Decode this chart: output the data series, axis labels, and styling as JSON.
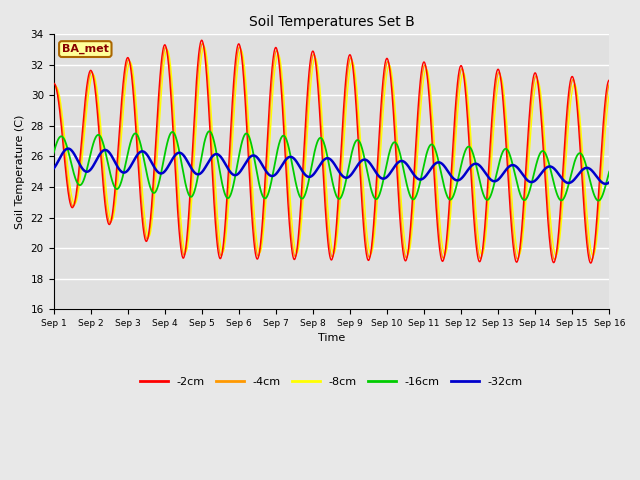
{
  "title": "Soil Temperatures Set B",
  "xlabel": "Time",
  "ylabel": "Soil Temperature (C)",
  "ylim": [
    16,
    34
  ],
  "xlim": [
    0,
    15
  ],
  "xtick_labels": [
    "Sep 1",
    "Sep 2",
    "Sep 3",
    "Sep 4",
    "Sep 5",
    "Sep 6",
    "Sep 7",
    "Sep 8",
    "Sep 9",
    "Sep 10",
    "Sep 11",
    "Sep 12",
    "Sep 13",
    "Sep 14",
    "Sep 15",
    "Sep 16"
  ],
  "ytick_vals": [
    16,
    18,
    20,
    22,
    24,
    26,
    28,
    30,
    32,
    34
  ],
  "colors": {
    "-2cm": "#ff0000",
    "-4cm": "#ff9900",
    "-8cm": "#ffff00",
    "-16cm": "#00cc00",
    "-32cm": "#0000cc"
  },
  "legend_label": "BA_met",
  "background_color": "#e8e8e8",
  "plot_bg_color": "#e0e0e0",
  "n_points": 2000,
  "days": 15
}
